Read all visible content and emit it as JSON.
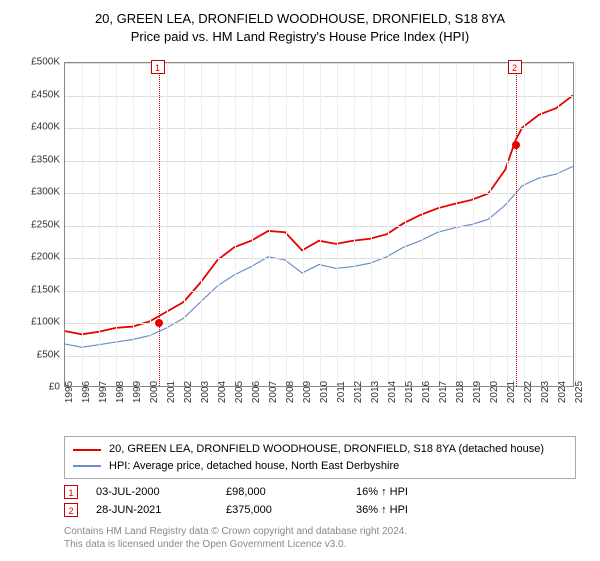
{
  "title_line1": "20, GREEN LEA, DRONFIELD WOODHOUSE, DRONFIELD, S18 8YA",
  "title_line2": "Price paid vs. HM Land Registry's House Price Index (HPI)",
  "chart": {
    "type": "line",
    "background_color": "#ffffff",
    "grid_color": "#dddddd",
    "border_color": "#888888",
    "ylim": [
      0,
      500000
    ],
    "ytick_step": 50000,
    "yticks": [
      "£0",
      "£50K",
      "£100K",
      "£150K",
      "£200K",
      "£250K",
      "£300K",
      "£350K",
      "£400K",
      "£450K",
      "£500K"
    ],
    "xlim": [
      1995,
      2025
    ],
    "xticks": [
      "1995",
      "1996",
      "1997",
      "1998",
      "1999",
      "2000",
      "2001",
      "2002",
      "2003",
      "2004",
      "2005",
      "2006",
      "2007",
      "2008",
      "2009",
      "2010",
      "2011",
      "2012",
      "2013",
      "2014",
      "2015",
      "2016",
      "2017",
      "2018",
      "2019",
      "2020",
      "2021",
      "2022",
      "2023",
      "2024",
      "2025"
    ],
    "marker_color": "#cc0000",
    "marker_dotted": true,
    "series": [
      {
        "name": "red",
        "color": "#e60000",
        "width": 1.8,
        "data": [
          [
            1995,
            85
          ],
          [
            1996,
            80
          ],
          [
            1997,
            84
          ],
          [
            1998,
            90
          ],
          [
            1999,
            92
          ],
          [
            2000,
            100
          ],
          [
            2001,
            115
          ],
          [
            2002,
            130
          ],
          [
            2003,
            160
          ],
          [
            2004,
            195
          ],
          [
            2005,
            215
          ],
          [
            2006,
            225
          ],
          [
            2007,
            240
          ],
          [
            2008,
            238
          ],
          [
            2009,
            210
          ],
          [
            2010,
            225
          ],
          [
            2011,
            220
          ],
          [
            2012,
            225
          ],
          [
            2013,
            228
          ],
          [
            2014,
            235
          ],
          [
            2015,
            252
          ],
          [
            2016,
            265
          ],
          [
            2017,
            275
          ],
          [
            2018,
            282
          ],
          [
            2019,
            288
          ],
          [
            2020,
            298
          ],
          [
            2021,
            335
          ],
          [
            2021.6,
            380
          ],
          [
            2022,
            400
          ],
          [
            2023,
            420
          ],
          [
            2024,
            430
          ],
          [
            2025,
            450
          ]
        ]
      },
      {
        "name": "blue",
        "color": "#6b8fc9",
        "width": 1.2,
        "data": [
          [
            1995,
            65
          ],
          [
            1996,
            60
          ],
          [
            1997,
            64
          ],
          [
            1998,
            68
          ],
          [
            1999,
            72
          ],
          [
            2000,
            78
          ],
          [
            2001,
            90
          ],
          [
            2002,
            105
          ],
          [
            2003,
            130
          ],
          [
            2004,
            155
          ],
          [
            2005,
            172
          ],
          [
            2006,
            185
          ],
          [
            2007,
            200
          ],
          [
            2008,
            195
          ],
          [
            2009,
            175
          ],
          [
            2010,
            188
          ],
          [
            2011,
            182
          ],
          [
            2012,
            185
          ],
          [
            2013,
            190
          ],
          [
            2014,
            200
          ],
          [
            2015,
            215
          ],
          [
            2016,
            225
          ],
          [
            2017,
            238
          ],
          [
            2018,
            245
          ],
          [
            2019,
            250
          ],
          [
            2020,
            258
          ],
          [
            2021,
            280
          ],
          [
            2022,
            310
          ],
          [
            2023,
            322
          ],
          [
            2024,
            328
          ],
          [
            2025,
            340
          ]
        ]
      }
    ],
    "markers": [
      {
        "id": "1",
        "x": 2000.5,
        "y": 100
      },
      {
        "id": "2",
        "x": 2021.5,
        "y": 375
      }
    ]
  },
  "legend": {
    "items": [
      {
        "color": "#e60000",
        "label": "20, GREEN LEA, DRONFIELD WOODHOUSE, DRONFIELD, S18 8YA (detached house)"
      },
      {
        "color": "#6b8fc9",
        "label": "HPI: Average price, detached house, North East Derbyshire"
      }
    ]
  },
  "events": [
    {
      "id": "1",
      "date": "03-JUL-2000",
      "price": "£98,000",
      "pct": "16% ↑ HPI"
    },
    {
      "id": "2",
      "date": "28-JUN-2021",
      "price": "£375,000",
      "pct": "36% ↑ HPI"
    }
  ],
  "footer_line1": "Contains HM Land Registry data © Crown copyright and database right 2024.",
  "footer_line2": "This data is licensed under the Open Government Licence v3.0."
}
